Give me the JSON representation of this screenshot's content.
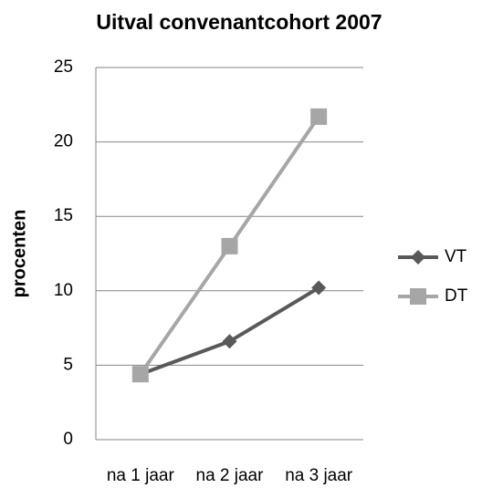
{
  "chart_data": {
    "type": "line",
    "title": "Uitval convenantcohort 2007",
    "y_label": "procenten",
    "categories": [
      "na 1 jaar",
      "na 2 jaar",
      "na 3 jaar"
    ],
    "series": [
      {
        "name": "VT",
        "color": "#595959",
        "marker": "diamond",
        "values": [
          4.4,
          6.6,
          10.2
        ]
      },
      {
        "name": "DT",
        "color": "#a6a6a6",
        "marker": "square",
        "values": [
          4.4,
          13.0,
          21.7
        ]
      }
    ],
    "ylim": [
      0,
      25
    ],
    "yticks": [
      0,
      5,
      10,
      15,
      20,
      25
    ],
    "grid": true,
    "legend": "right"
  }
}
